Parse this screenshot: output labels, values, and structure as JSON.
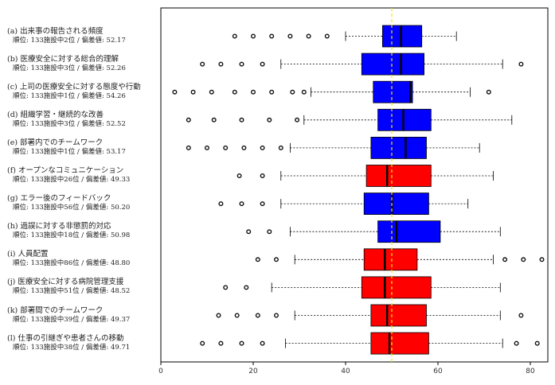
{
  "chart_data": {
    "type": "boxplot",
    "orientation": "horizontal",
    "xlim": [
      0,
      85
    ],
    "xticks": [
      "0",
      "20",
      "40",
      "60",
      "80"
    ],
    "reference_line": 50,
    "colors": {
      "above": "#0000ff",
      "below": "#ff0000",
      "reference": "#f2e600"
    },
    "categories": [
      {
        "name": "(a) 出来事の報告される頻度",
        "meta": "順位: 133施設中2位 / 偏差値: 52.17",
        "color": "above",
        "q1": 48,
        "median": 52,
        "q3": 56.5,
        "wlo": 40,
        "whi": 64,
        "outliers": [
          16,
          20,
          24,
          28,
          32,
          36
        ]
      },
      {
        "name": "(b) 医療安全に対する総合的理解",
        "meta": "順位: 133施設中3位 / 偏差値: 52.26",
        "color": "above",
        "q1": 43.5,
        "median": 52,
        "q3": 57,
        "wlo": 26,
        "whi": 74,
        "outliers": [
          9,
          13,
          17.5,
          22,
          78
        ]
      },
      {
        "name": "(c) 上司の医療安全に対する態度や行動",
        "meta": "順位: 133施設中1位 / 偏差値: 54.26",
        "color": "above",
        "q1": 46,
        "median": 54,
        "q3": 54.5,
        "wlo": 32.5,
        "whi": 67,
        "outliers": [
          3,
          7,
          11,
          16,
          20,
          24,
          28.5,
          31,
          71
        ]
      },
      {
        "name": "(d) 組織学習・継続的な改善",
        "meta": "順位: 133施設中3位 / 偏差値: 52.52",
        "color": "above",
        "q1": 47,
        "median": 52.5,
        "q3": 58.5,
        "wlo": 31,
        "whi": 76,
        "outliers": [
          6,
          11.5,
          17.5,
          23.5,
          29.5
        ]
      },
      {
        "name": "(e) 部署内でのチームワーク",
        "meta": "順位: 133施設中1位 / 偏差値: 53.17",
        "color": "above",
        "q1": 45.5,
        "median": 53,
        "q3": 57.5,
        "wlo": 28,
        "whi": 69,
        "outliers": [
          6,
          10,
          14,
          18,
          22,
          26
        ]
      },
      {
        "name": "(f) オープンなコミュニケーション",
        "meta": "順位: 133施設中26位 / 偏差値: 49.33",
        "color": "below",
        "q1": 44.5,
        "median": 49,
        "q3": 58.5,
        "wlo": 26,
        "whi": 72,
        "outliers": [
          17,
          22
        ]
      },
      {
        "name": "(g) エラー後のフィードバック",
        "meta": "順位: 133施設中56位 / 偏差値: 50.20",
        "color": "above",
        "q1": 44,
        "median": 50,
        "q3": 58,
        "wlo": 26,
        "whi": 66.5,
        "outliers": [
          13,
          17.5,
          22
        ]
      },
      {
        "name": "(h) 過誤に対する非懲罰的対応",
        "meta": "順位: 133施設中18位 / 偏差値: 50.98",
        "color": "above",
        "q1": 47,
        "median": 51,
        "q3": 60.5,
        "wlo": 28,
        "whi": 73.5,
        "outliers": [
          19,
          23.5
        ]
      },
      {
        "name": "(i) 人員配置",
        "meta": "順位: 133施設中86位 / 偏差値: 48.80",
        "color": "below",
        "q1": 44,
        "median": 48.5,
        "q3": 55.5,
        "wlo": 29,
        "whi": 72,
        "outliers": [
          21,
          25,
          74.5,
          78.5,
          82.5
        ]
      },
      {
        "name": "(j) 医療安全に対する病院管理支援",
        "meta": "順位: 133施設中51位 / 偏差値: 48.52",
        "color": "below",
        "q1": 43.5,
        "median": 48.5,
        "q3": 58.5,
        "wlo": 24,
        "whi": 73.5,
        "outliers": [
          14,
          18.5
        ]
      },
      {
        "name": "(k) 部署間でのチームワーク",
        "meta": "順位: 133施設中39位 / 偏差値: 49.37",
        "color": "below",
        "q1": 45.5,
        "median": 49,
        "q3": 57.5,
        "wlo": 29,
        "whi": 73.5,
        "outliers": [
          12.5,
          16.5,
          21,
          25,
          78
        ]
      },
      {
        "name": "(l) 仕事の引継ぎや患者さんの移動",
        "meta": "順位: 133施設中38位 / 偏差値: 49.71",
        "color": "below",
        "q1": 45.5,
        "median": 49.5,
        "q3": 58,
        "wlo": 27,
        "whi": 74,
        "outliers": [
          9,
          13,
          17.5,
          22,
          77,
          81.5
        ]
      }
    ]
  }
}
